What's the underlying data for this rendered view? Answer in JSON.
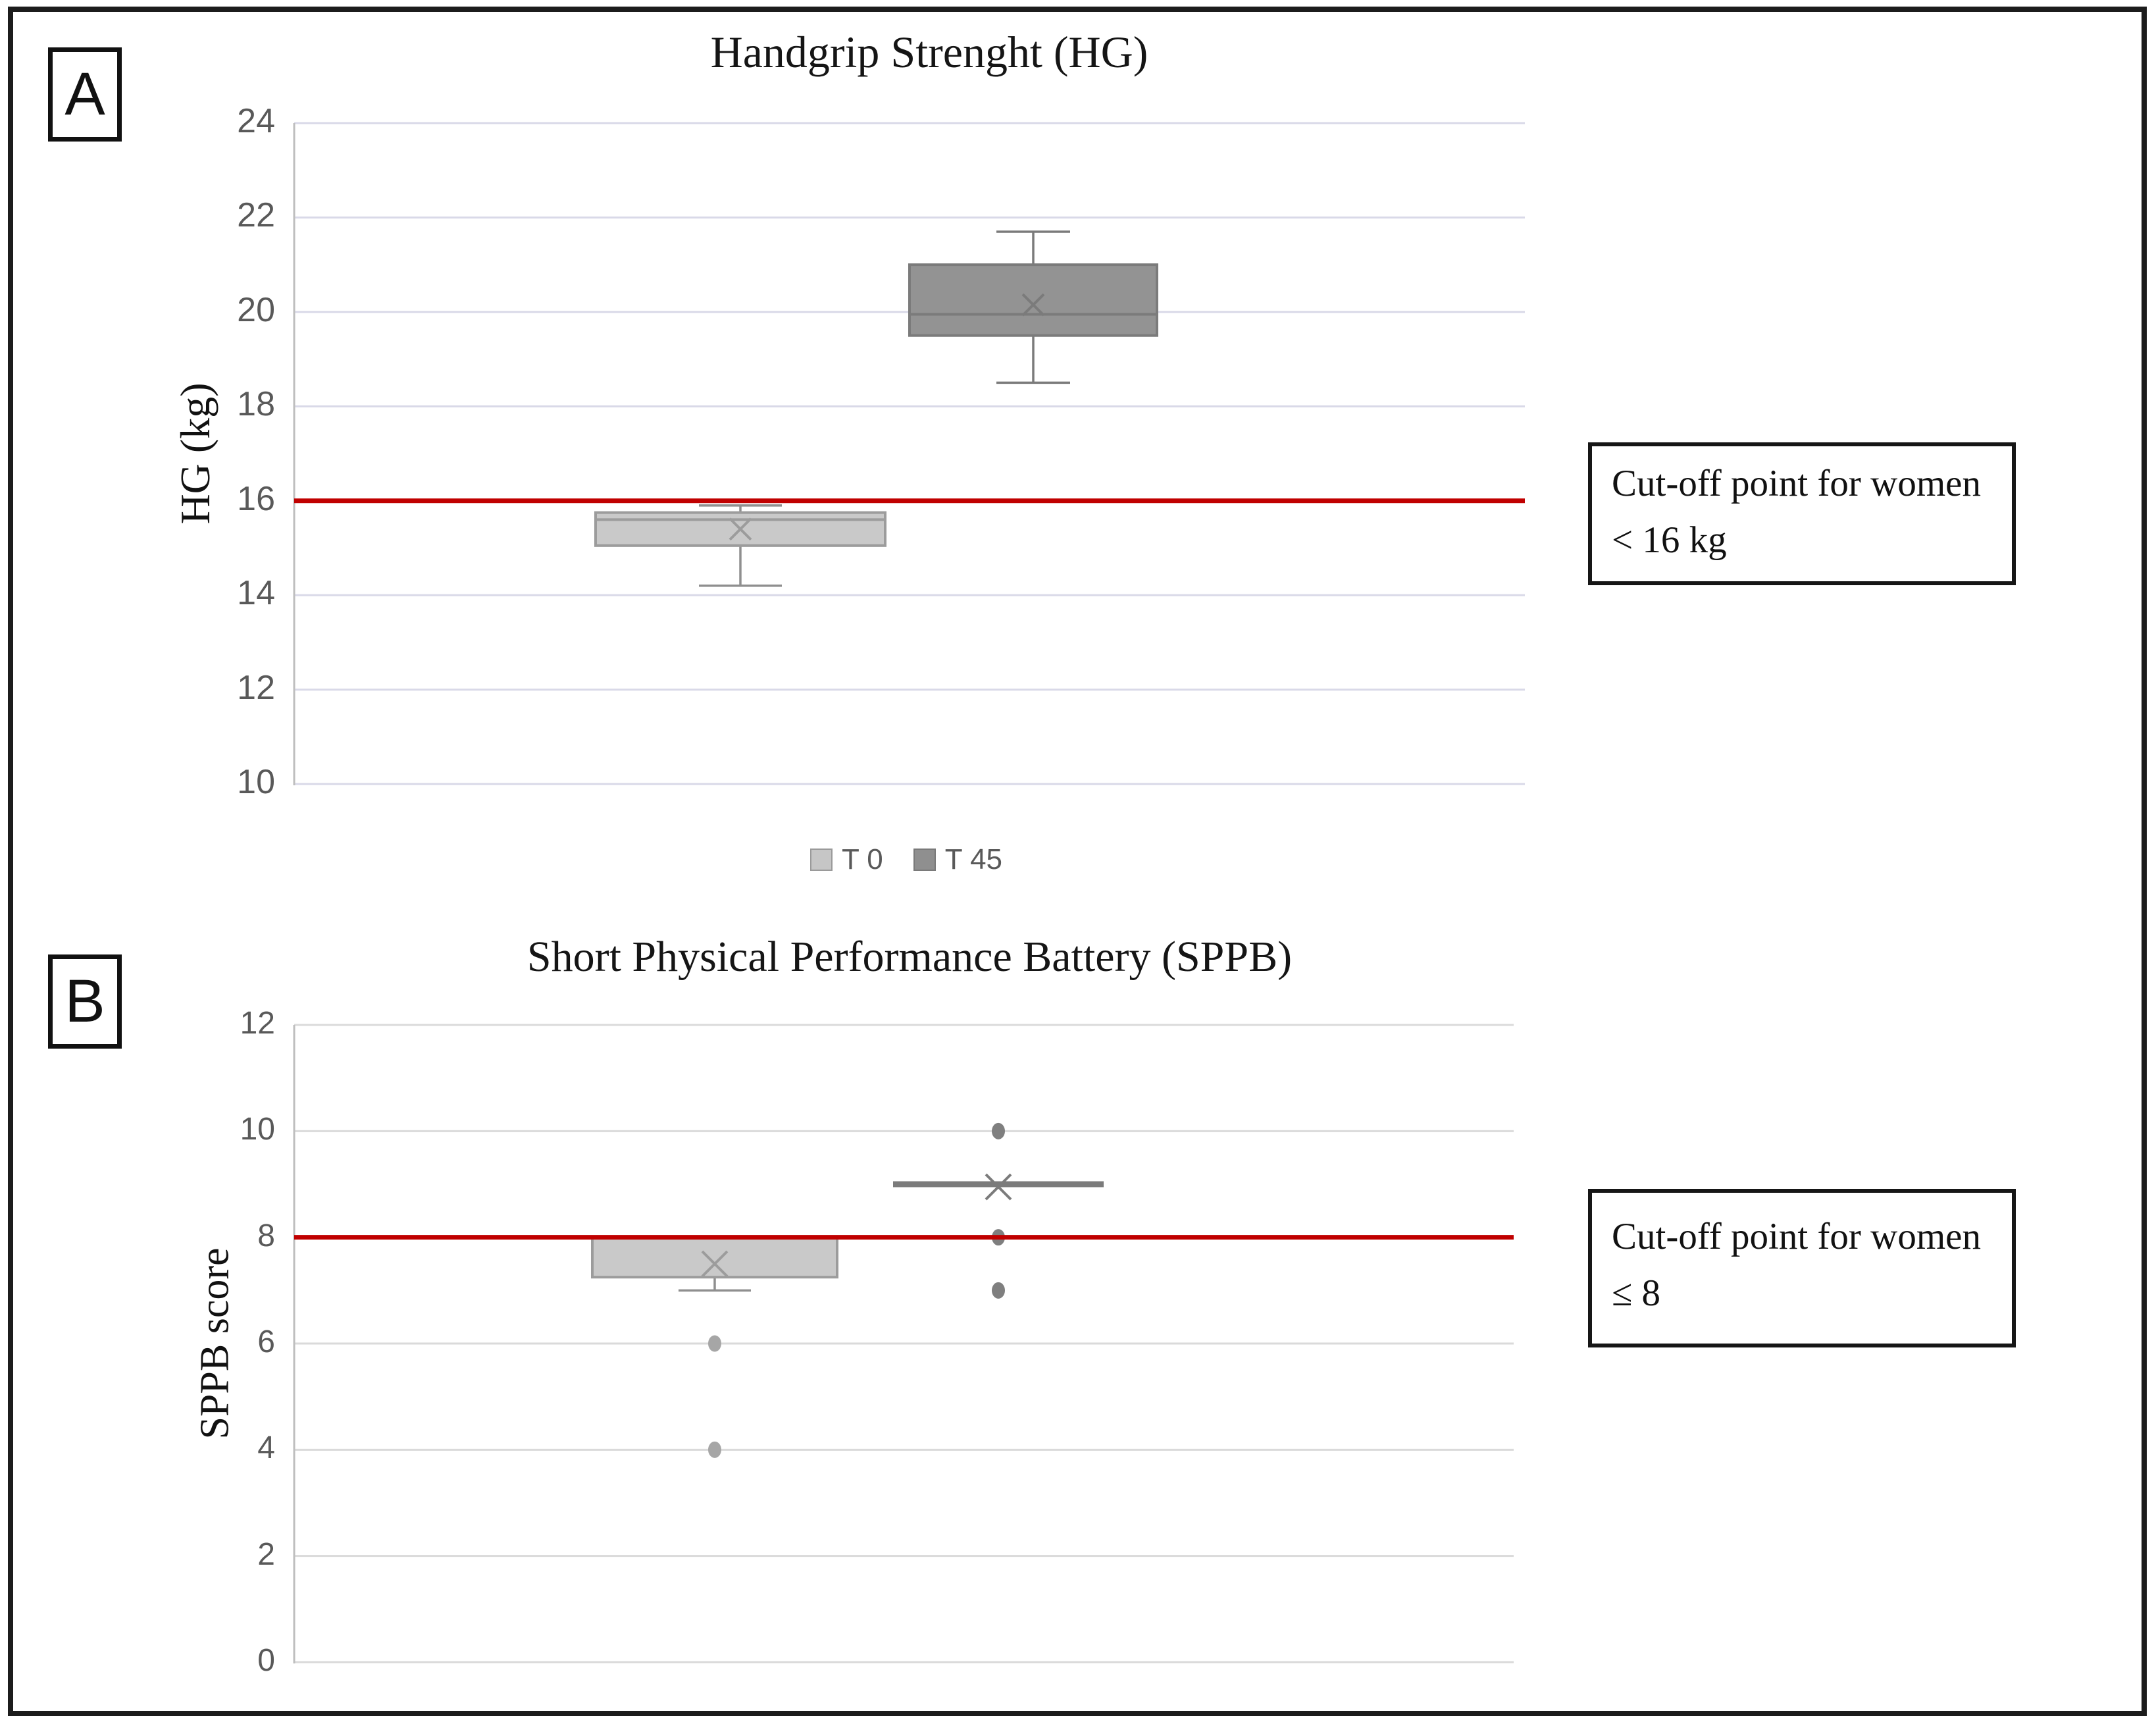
{
  "legend": {
    "items": [
      {
        "label": "T 0",
        "fill": "#c6c6c6",
        "border": "#9a9a9a"
      },
      {
        "label": "T 45",
        "fill": "#8f8f8f",
        "border": "#7a7a7a"
      }
    ]
  },
  "chart_data": [
    {
      "type": "box",
      "panel": "A",
      "title": "Handgrip Strenght (HG)",
      "ylabel": "HG (kg)",
      "ylim": [
        10,
        24
      ],
      "yticks": [
        10,
        12,
        14,
        16,
        18,
        20,
        22,
        24
      ],
      "grid": true,
      "grid_color": "#d9d9e8",
      "legend_position": "bottom",
      "cutoff": {
        "value": 16,
        "color": "#c00000"
      },
      "annotation": {
        "line1": "Cut-off point for women",
        "line2": "< 16 kg"
      },
      "categories": [
        "T 0",
        "T 45"
      ],
      "series": [
        {
          "name": "T 0",
          "min": 14.2,
          "q1": 15.05,
          "median": 15.6,
          "q3": 15.75,
          "max": 15.9,
          "mean": 15.4,
          "outliers": [],
          "fill": "#c9c9c9",
          "stroke": "#9c9c9c",
          "whisker": "#8f8f8f",
          "outlier_color": "#a6a6a6"
        },
        {
          "name": "T 45",
          "min": 18.5,
          "q1": 19.5,
          "median": 19.95,
          "q3": 21,
          "max": 21.7,
          "mean": 20.15,
          "outliers": [],
          "fill": "#939393",
          "stroke": "#7b7b7b",
          "whisker": "#7b7b7b",
          "outlier_color": "#7f7f7f"
        }
      ]
    },
    {
      "type": "box",
      "panel": "B",
      "title": "Short Physical Performance Battery (SPPB)",
      "ylabel": "SPPB score",
      "ylim": [
        0,
        12
      ],
      "yticks": [
        0,
        2,
        4,
        6,
        8,
        10,
        12
      ],
      "grid": true,
      "grid_color": "#dadada",
      "cutoff": {
        "value": 8,
        "color": "#c00000"
      },
      "annotation": {
        "line1": "Cut-off point for women",
        "line2": "≤ 8"
      },
      "categories": [
        "T 0",
        "T 45"
      ],
      "series": [
        {
          "name": "T 0",
          "min": 7,
          "q1": 7.25,
          "median": 8,
          "q3": 8,
          "max": 8,
          "mean": 7.5,
          "outliers": [
            6,
            4
          ],
          "fill": "#c9c9c9",
          "stroke": "#9c9c9c",
          "whisker": "#8f8f8f",
          "outlier_color": "#a6a6a6"
        },
        {
          "name": "T 45",
          "min": 9,
          "q1": 9,
          "median": 9,
          "q3": 9,
          "max": 9,
          "mean": 8.95,
          "outliers": [
            10,
            8,
            7
          ],
          "fill": "#939393",
          "stroke": "#7b7b7b",
          "whisker": "#7b7b7b",
          "outlier_color": "#7f7f7f"
        }
      ]
    }
  ]
}
